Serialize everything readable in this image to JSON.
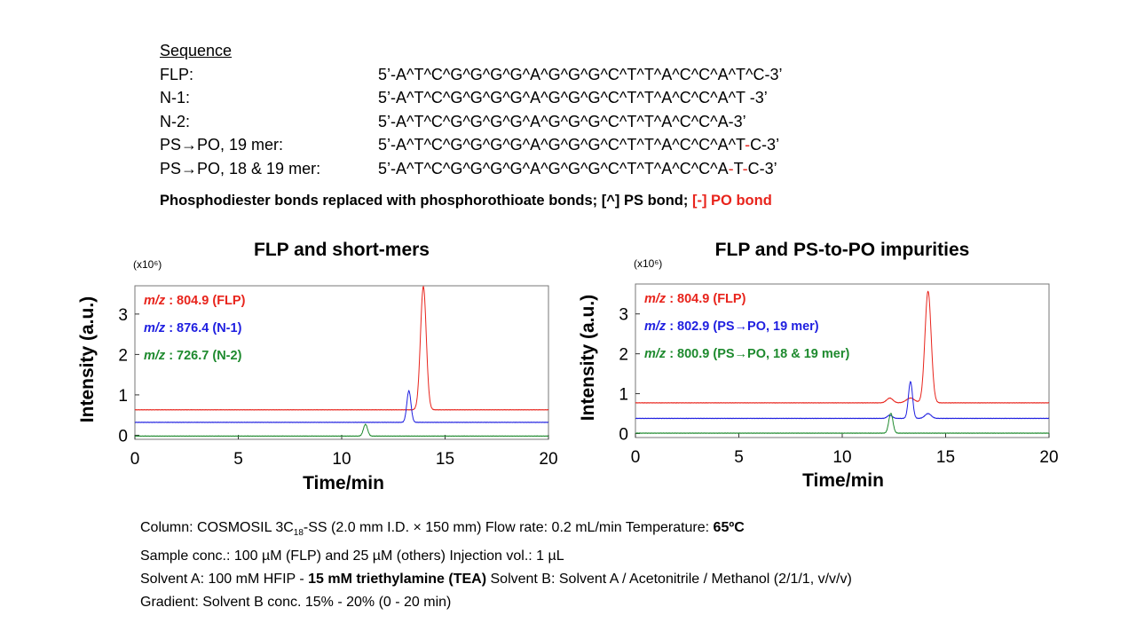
{
  "sequence": {
    "heading": "Sequence",
    "rows": [
      {
        "name": "FLP:",
        "seq": "5’-A^T^C^G^G^G^G^A^G^G^G^C^T^T^A^C^C^A^T^C-3’"
      },
      {
        "name": "N-1:",
        "seq": "5’-A^T^C^G^G^G^G^A^G^G^G^C^T^T^A^C^C^A^T -3’"
      },
      {
        "name": "N-2:",
        "seq": "5’-A^T^C^G^G^G^G^A^G^G^G^C^T^T^A^C^C^A-3’"
      },
      {
        "name": "PS→PO, 19 mer:",
        "seq_a": "5’-A^T^C^G^G^G^G^A^G^G^G^C^T^T^A^C^C^A^T",
        "seq_b": "-",
        "seq_c": "C-3’"
      },
      {
        "name": "PS→PO, 18 & 19 mer:",
        "seq_a": "5’-A^T^C^G^G^G^G^A^G^G^G^C^T^T^A^C^C^A",
        "seq_b": "-",
        "seq_c": "T",
        "seq_d": "-",
        "seq_e": "C-3’"
      }
    ],
    "note_a": "Phosphodiester bonds replaced with phosphorothioate bonds; [^] PS bond; ",
    "note_b": "[-] PO bond"
  },
  "chart_data": [
    {
      "type": "line",
      "title": "FLP and short-mers",
      "xlabel": "Time/min",
      "ylabel": "Intensity (a.u.)",
      "y_multiplier": "(x10⁶)",
      "xlim": [
        0,
        20
      ],
      "ylim": [
        -0.1,
        3.7
      ],
      "xticks": [
        "0",
        "5",
        "10",
        "15",
        "20"
      ],
      "yticks": [
        "0",
        "1",
        "2",
        "3"
      ],
      "legend_position": "top-left",
      "series": [
        {
          "name": "m/z : 804.9 (FLP)",
          "prefix": "m/z",
          "suffix": " : 804.9 (FLP)",
          "color": "#e8241c",
          "baseline": 0.63,
          "peaks": [
            {
              "x": 13.95,
              "height": 3.05,
              "width": 0.14
            }
          ]
        },
        {
          "name": "m/z : 876.4 (N-1)",
          "prefix": "m/z",
          "suffix": " : 876.4 (N-1)",
          "color": "#1f1fe0",
          "baseline": 0.32,
          "peaks": [
            {
              "x": 13.25,
              "height": 0.78,
              "width": 0.1
            }
          ]
        },
        {
          "name": "m/z : 726.7 (N-2)",
          "prefix": "m/z",
          "suffix": " : 726.7 (N-2)",
          "color": "#1e8a2e",
          "baseline": -0.02,
          "peaks": [
            {
              "x": 11.15,
              "height": 0.29,
              "width": 0.1
            }
          ]
        }
      ]
    },
    {
      "type": "line",
      "title": "FLP and PS-to-PO impurities",
      "xlabel": "Time/min",
      "ylabel": "Intensity (a.u.)",
      "y_multiplier": "(x10⁶)",
      "xlim": [
        0,
        20
      ],
      "ylim": [
        -0.1,
        3.75
      ],
      "xticks": [
        "0",
        "5",
        "10",
        "15",
        "20"
      ],
      "yticks": [
        "0",
        "1",
        "2",
        "3"
      ],
      "legend_position": "top-left",
      "series": [
        {
          "name": "m/z : 804.9 (FLP)",
          "prefix": "m/z",
          "suffix": " : 804.9 (FLP)",
          "color": "#e8241c",
          "baseline": 0.77,
          "peaks": [
            {
              "x": 12.3,
              "height": 0.12,
              "width": 0.15
            },
            {
              "x": 13.3,
              "height": 0.12,
              "width": 0.2
            },
            {
              "x": 14.15,
              "height": 2.8,
              "width": 0.15
            }
          ]
        },
        {
          "name": "m/z : 802.9 (PS→PO, 19 mer)",
          "prefix": "m/z",
          "suffix": " : 802.9 (PS→PO, 19 mer)",
          "color": "#1f1fe0",
          "baseline": 0.38,
          "peaks": [
            {
              "x": 12.3,
              "height": 0.08,
              "width": 0.12
            },
            {
              "x": 13.3,
              "height": 0.92,
              "width": 0.1
            },
            {
              "x": 14.15,
              "height": 0.12,
              "width": 0.15
            }
          ]
        },
        {
          "name": "m/z : 800.9 (PS→PO, 18 & 19 mer)",
          "prefix": "m/z",
          "suffix": " : 800.9 (PS→PO, 18 & 19 mer)",
          "color": "#1e8a2e",
          "baseline": 0.01,
          "peaks": [
            {
              "x": 12.35,
              "height": 0.5,
              "width": 0.1
            }
          ]
        }
      ]
    }
  ],
  "conditions": {
    "line1": {
      "a": "Column: COSMOSIL 3C",
      "sub": "18",
      "b": "-SS (2.0 mm I.D. × 150 mm)   Flow rate: 0.2 mL/min   Temperature: ",
      "bold": "65ºC"
    },
    "line2": "Sample conc.: 100 µM (FLP) and 25 µM (others)   Injection vol.: 1 µL",
    "line3": {
      "a": "Solvent A: 100 mM HFIP - ",
      "bold": "15 mM triethylamine (TEA)",
      "b": "  Solvent B: Solvent A / Acetonitrile / Methanol (2/1/1, v/v/v)"
    },
    "line4": "Gradient: Solvent B conc. 15% - 20% (0 - 20 min)"
  }
}
